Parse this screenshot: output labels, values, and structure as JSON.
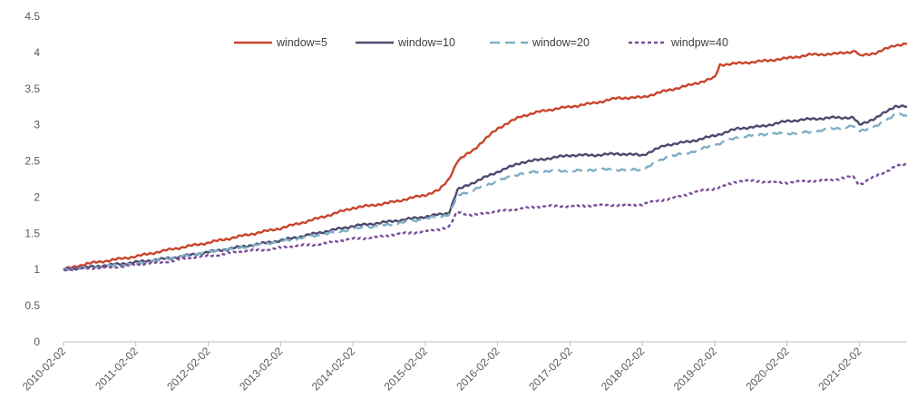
{
  "chart_data": {
    "type": "line",
    "title": "",
    "xlabel": "",
    "ylabel": "",
    "ylim": [
      0,
      4.5
    ],
    "yticks": [
      "0",
      "0.5",
      "1",
      "1.5",
      "2",
      "2.5",
      "3",
      "3.5",
      "4",
      "4.5"
    ],
    "xticks": [
      "2010-02-02",
      "2011-02-02",
      "2012-02-02",
      "2013-02-02",
      "2014-02-02",
      "2015-02-02",
      "2016-02-02",
      "2017-02-02",
      "2018-02-02",
      "2019-02-02",
      "2020-02-02",
      "2021-02-02"
    ],
    "xlim": [
      "2010-02-02",
      "2021-09-30"
    ],
    "grid": false,
    "legend_position": "top",
    "series": [
      {
        "name": "window=5",
        "color": "#c8452a",
        "dash": "solid",
        "x": [
          "2010-02-02",
          "2010-06-01",
          "2011-02-02",
          "2011-08-01",
          "2012-02-02",
          "2012-08-01",
          "2013-02-02",
          "2013-08-01",
          "2014-02-02",
          "2014-08-01",
          "2015-02-02",
          "2015-04-15",
          "2015-06-01",
          "2015-07-15",
          "2015-10-01",
          "2016-02-02",
          "2016-06-01",
          "2016-10-01",
          "2017-02-02",
          "2017-06-01",
          "2017-10-01",
          "2018-02-02",
          "2018-06-01",
          "2018-10-01",
          "2019-02-02",
          "2019-03-01",
          "2019-06-01",
          "2019-10-01",
          "2020-02-02",
          "2020-06-01",
          "2020-10-01",
          "2021-01-15",
          "2021-02-02",
          "2021-05-01",
          "2021-08-01",
          "2021-09-30"
        ],
        "y": [
          1.0,
          1.08,
          1.18,
          1.28,
          1.37,
          1.47,
          1.57,
          1.7,
          1.85,
          1.92,
          2.03,
          2.1,
          2.25,
          2.5,
          2.65,
          2.95,
          3.12,
          3.2,
          3.25,
          3.3,
          3.37,
          3.38,
          3.47,
          3.55,
          3.65,
          3.83,
          3.85,
          3.88,
          3.92,
          3.97,
          3.98,
          4.02,
          3.95,
          4.0,
          4.1,
          4.12
        ]
      },
      {
        "name": "window=10",
        "color": "#4d4a6e",
        "dash": "solid",
        "x": [
          "2010-02-02",
          "2010-06-01",
          "2011-02-02",
          "2011-08-01",
          "2012-02-02",
          "2012-08-01",
          "2013-02-02",
          "2013-08-01",
          "2014-02-02",
          "2014-08-01",
          "2015-02-02",
          "2015-06-01",
          "2015-07-15",
          "2015-10-01",
          "2016-02-02",
          "2016-06-01",
          "2016-10-01",
          "2017-02-02",
          "2017-06-01",
          "2017-10-01",
          "2018-02-02",
          "2018-06-01",
          "2018-10-01",
          "2019-02-02",
          "2019-06-01",
          "2019-10-01",
          "2020-02-02",
          "2020-06-01",
          "2020-10-01",
          "2021-01-01",
          "2021-02-02",
          "2021-05-01",
          "2021-08-01",
          "2021-09-30"
        ],
        "y": [
          1.0,
          1.03,
          1.1,
          1.16,
          1.24,
          1.32,
          1.4,
          1.5,
          1.6,
          1.66,
          1.73,
          1.78,
          2.1,
          2.2,
          2.35,
          2.48,
          2.53,
          2.58,
          2.58,
          2.6,
          2.58,
          2.72,
          2.77,
          2.85,
          2.95,
          2.98,
          3.05,
          3.08,
          3.1,
          3.1,
          3.0,
          3.1,
          3.26,
          3.25
        ]
      },
      {
        "name": "window=20",
        "color": "#7faec5",
        "dash": "dashed",
        "x": [
          "2010-02-02",
          "2010-06-01",
          "2011-02-02",
          "2011-08-01",
          "2012-02-02",
          "2012-08-01",
          "2013-02-02",
          "2013-08-01",
          "2014-02-02",
          "2014-08-01",
          "2015-02-02",
          "2015-06-01",
          "2015-07-15",
          "2015-10-01",
          "2016-02-02",
          "2016-06-01",
          "2016-10-01",
          "2017-02-02",
          "2017-06-01",
          "2017-10-01",
          "2018-02-02",
          "2018-06-01",
          "2018-10-01",
          "2019-02-02",
          "2019-06-01",
          "2019-10-01",
          "2020-02-02",
          "2020-06-01",
          "2020-10-01",
          "2021-01-01",
          "2021-02-02",
          "2021-05-01",
          "2021-08-01",
          "2021-09-30"
        ],
        "y": [
          1.0,
          1.02,
          1.08,
          1.16,
          1.24,
          1.31,
          1.39,
          1.47,
          1.56,
          1.62,
          1.7,
          1.76,
          2.02,
          2.1,
          2.22,
          2.33,
          2.36,
          2.36,
          2.38,
          2.38,
          2.38,
          2.55,
          2.62,
          2.72,
          2.83,
          2.87,
          2.88,
          2.9,
          2.95,
          2.98,
          2.92,
          2.98,
          3.15,
          3.12
        ]
      },
      {
        "name": "windpw=40",
        "color": "#7b4e9a",
        "dash": "dotted",
        "x": [
          "2010-02-02",
          "2010-06-01",
          "2011-02-02",
          "2011-08-01",
          "2012-02-02",
          "2012-08-01",
          "2013-02-02",
          "2013-08-01",
          "2014-02-02",
          "2014-08-01",
          "2015-02-02",
          "2015-06-01",
          "2015-07-15",
          "2015-10-01",
          "2016-02-02",
          "2016-06-01",
          "2016-10-01",
          "2017-02-02",
          "2017-06-01",
          "2017-10-01",
          "2018-02-02",
          "2018-06-01",
          "2018-10-01",
          "2019-02-02",
          "2019-06-01",
          "2019-10-01",
          "2020-02-02",
          "2020-06-01",
          "2020-10-01",
          "2021-01-01",
          "2021-02-02",
          "2021-05-01",
          "2021-08-01",
          "2021-09-30"
        ],
        "y": [
          1.0,
          1.01,
          1.06,
          1.12,
          1.19,
          1.25,
          1.3,
          1.35,
          1.42,
          1.47,
          1.53,
          1.58,
          1.8,
          1.75,
          1.8,
          1.85,
          1.87,
          1.88,
          1.88,
          1.89,
          1.9,
          1.97,
          2.05,
          2.12,
          2.22,
          2.22,
          2.2,
          2.22,
          2.25,
          2.28,
          2.17,
          2.3,
          2.42,
          2.45
        ]
      }
    ]
  }
}
